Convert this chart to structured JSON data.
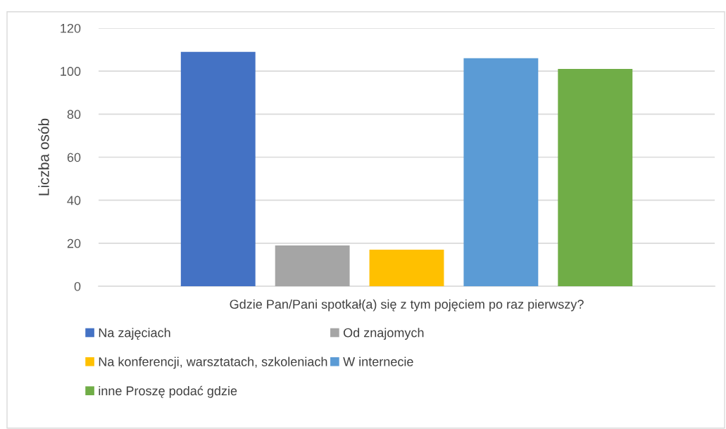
{
  "chart_data": {
    "type": "bar",
    "xlabel": "Gdzie Pan/Pani spotkał(a) się z tym pojęciem po raz pierwszy?",
    "ylabel": "Liczba osób",
    "categories": [
      null
    ],
    "series": [
      {
        "name": "Na zajęciach",
        "color": "#4472c4",
        "values": [
          109
        ]
      },
      {
        "name": "Od znajomych",
        "color": "#a5a5a5",
        "values": [
          19
        ]
      },
      {
        "name": "Na konferencji, warsztatach, szkoleniach",
        "color": "#ffc000",
        "values": [
          17
        ]
      },
      {
        "name": "W internecie",
        "color": "#5b9bd5",
        "values": [
          106
        ]
      },
      {
        "name": "inne Proszę podać gdzie",
        "color": "#70ad47",
        "values": [
          101
        ]
      }
    ],
    "ylim": [
      0,
      120
    ],
    "yticks": [
      0,
      20,
      40,
      60,
      80,
      100,
      120
    ],
    "grid": "y",
    "legend": "bottom"
  }
}
